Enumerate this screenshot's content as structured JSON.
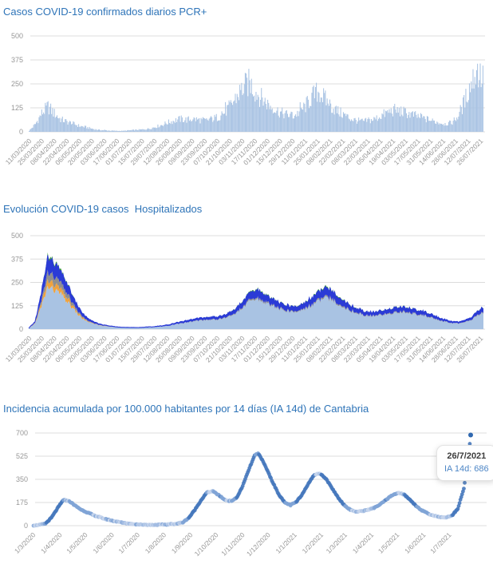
{
  "accent_color": "#2e74b8",
  "axis": {
    "label_color": "#979797",
    "grid_color": "#dcdcdc"
  },
  "chart_data": [
    {
      "type": "bar",
      "title": "Casos COVID-19 confirmados diarios PCR+",
      "ylabel": "",
      "xlabel": "",
      "ylim": [
        0,
        500
      ],
      "yticks": [
        0,
        125,
        250,
        375,
        500
      ],
      "grid": true,
      "legend": "none",
      "bar_color": "#a9c3e3",
      "x_tick_labels": [
        "11/03/2020",
        "25/03/2020",
        "08/04/2020",
        "22/04/2020",
        "06/05/2020",
        "20/05/2020",
        "03/06/2020",
        "17/06/2020",
        "01/07/2020",
        "15/07/2020",
        "29/07/2020",
        "12/08/2020",
        "26/08/2020",
        "09/09/2020",
        "23/09/2020",
        "07/10/2020",
        "21/10/2020",
        "03/11/2020",
        "17/11/2020",
        "01/12/2020",
        "15/12/2020",
        "29/12/2020",
        "11/01/2021",
        "25/01/2021",
        "08/02/2021",
        "22/02/2021",
        "08/03/2021",
        "22/03/2021",
        "05/04/2021",
        "19/04/2021",
        "03/05/2021",
        "17/05/2021",
        "31/05/2021",
        "14/06/2021",
        "28/06/2021",
        "12/07/2021",
        "26/07/2021"
      ],
      "sampling_note": "daily bars; values estimated at weekly control points from 11/03/2020 to 26/07/2021",
      "values_weekly": [
        5,
        40,
        95,
        130,
        95,
        65,
        52,
        42,
        30,
        24,
        16,
        10,
        8,
        6,
        5,
        5,
        8,
        10,
        12,
        16,
        25,
        35,
        48,
        58,
        66,
        62,
        66,
        62,
        58,
        66,
        76,
        100,
        135,
        185,
        230,
        255,
        205,
        170,
        140,
        115,
        98,
        88,
        82,
        105,
        140,
        185,
        210,
        165,
        130,
        105,
        88,
        68,
        58,
        54,
        58,
        68,
        86,
        102,
        112,
        105,
        96,
        86,
        76,
        66,
        56,
        48,
        42,
        46,
        78,
        150,
        240,
        320,
        270
      ]
    },
    {
      "type": "area",
      "title": "Evolución COVID-19 casos  Hospitalizados",
      "ylabel": "",
      "xlabel": "",
      "ylim": [
        0,
        500
      ],
      "yticks": [
        0,
        125,
        250,
        375,
        500
      ],
      "grid": true,
      "legend": "none",
      "stacked": true,
      "x_tick_labels": [
        "11/03/2020",
        "25/03/2020",
        "08/04/2020",
        "22/04/2020",
        "06/05/2020",
        "20/05/2020",
        "03/06/2020",
        "17/06/2020",
        "01/07/2020",
        "15/07/2020",
        "29/07/2020",
        "12/08/2020",
        "26/08/2020",
        "09/09/2020",
        "23/09/2020",
        "07/10/2020",
        "21/10/2020",
        "03/11/2020",
        "17/11/2020",
        "01/12/2020",
        "15/12/2020",
        "29/12/2020",
        "11/01/2021",
        "25/01/2021",
        "08/02/2021",
        "22/02/2021",
        "08/03/2021",
        "22/03/2021",
        "05/04/2021",
        "19/04/2021",
        "03/05/2021",
        "17/05/2021",
        "31/05/2021",
        "14/06/2021",
        "28/06/2021",
        "12/07/2021",
        "26/07/2021"
      ],
      "sampling_note": "stacked daily areas; per-layer values estimated at weekly control points",
      "series": [
        {
          "name": "light-blue-layer",
          "color": "#a9c3e3",
          "values_weekly": [
            3,
            30,
            120,
            225,
            210,
            190,
            150,
            110,
            70,
            45,
            30,
            22,
            16,
            12,
            10,
            8,
            7,
            7,
            8,
            9,
            11,
            14,
            18,
            24,
            30,
            35,
            40,
            45,
            48,
            50,
            52,
            58,
            70,
            90,
            115,
            150,
            160,
            150,
            132,
            118,
            105,
            95,
            90,
            98,
            112,
            132,
            152,
            165,
            155,
            135,
            115,
            98,
            85,
            75,
            70,
            70,
            75,
            82,
            88,
            90,
            88,
            82,
            75,
            68,
            58,
            47,
            38,
            32,
            30,
            35,
            48,
            70,
            90
          ]
        },
        {
          "name": "orange-layer",
          "color": "#f0a23c",
          "values_weekly": [
            0,
            2,
            15,
            35,
            30,
            25,
            20,
            12,
            8,
            4,
            2,
            1,
            1,
            0,
            0,
            0,
            0,
            0,
            0,
            0,
            0,
            0,
            0,
            0,
            0,
            0,
            0,
            0,
            0,
            0,
            0,
            0,
            0,
            0,
            0,
            0,
            0,
            0,
            0,
            0,
            0,
            0,
            0,
            0,
            0,
            0,
            0,
            0,
            0,
            0,
            0,
            0,
            0,
            0,
            0,
            0,
            0,
            0,
            0,
            0,
            0,
            0,
            0,
            0,
            0,
            0,
            0,
            0,
            0,
            0,
            0,
            0,
            0
          ]
        },
        {
          "name": "gray-layer",
          "color": "#8f8f8f",
          "values_weekly": [
            0,
            2,
            15,
            45,
            40,
            35,
            25,
            15,
            8,
            4,
            2,
            1,
            1,
            1,
            0,
            0,
            0,
            0,
            0,
            0,
            0,
            0,
            0,
            0,
            1,
            1,
            2,
            2,
            2,
            2,
            2,
            3,
            3,
            4,
            5,
            7,
            7,
            7,
            6,
            5,
            5,
            4,
            4,
            4,
            5,
            6,
            7,
            7,
            7,
            6,
            5,
            4,
            4,
            3,
            3,
            3,
            3,
            4,
            4,
            4,
            4,
            4,
            3,
            3,
            3,
            2,
            2,
            1,
            1,
            2,
            2,
            3,
            4
          ]
        },
        {
          "name": "blue-layer",
          "color": "#2b3bd6",
          "values_weekly": [
            2,
            6,
            40,
            75,
            70,
            60,
            50,
            35,
            22,
            14,
            9,
            6,
            4,
            3,
            3,
            2,
            2,
            2,
            2,
            3,
            3,
            4,
            5,
            6,
            8,
            9,
            10,
            11,
            12,
            12,
            13,
            14,
            17,
            22,
            28,
            36,
            40,
            38,
            33,
            30,
            26,
            24,
            23,
            25,
            28,
            33,
            38,
            41,
            39,
            34,
            29,
            24,
            21,
            19,
            17,
            18,
            19,
            20,
            22,
            23,
            22,
            20,
            19,
            17,
            14,
            12,
            9,
            8,
            7,
            9,
            12,
            18,
            23
          ]
        },
        {
          "name": "green-layer",
          "color": "#3f9c3f",
          "values_weekly": [
            0,
            0,
            5,
            15,
            12,
            10,
            8,
            5,
            3,
            2,
            1,
            1,
            0,
            0,
            0,
            0,
            0,
            0,
            0,
            0,
            0,
            0,
            1,
            1,
            1,
            1,
            1,
            1,
            2,
            2,
            2,
            2,
            3,
            4,
            5,
            6,
            7,
            7,
            6,
            5,
            4,
            4,
            3,
            4,
            5,
            6,
            7,
            8,
            7,
            6,
            5,
            4,
            3,
            3,
            3,
            3,
            3,
            3,
            4,
            4,
            4,
            3,
            3,
            3,
            2,
            2,
            2,
            1,
            1,
            1,
            2,
            3,
            4
          ]
        }
      ]
    },
    {
      "type": "scatter",
      "title": "Incidencia acumulada por 100.000 habitantes por 14 días (IA 14d) de Cantabria",
      "ylabel": "",
      "xlabel": "",
      "ylim": [
        0,
        700
      ],
      "yticks": [
        0,
        175,
        350,
        525,
        700
      ],
      "grid": true,
      "legend": "none",
      "dot_colors": [
        "#c6d5ec",
        "#a3bde2",
        "#7fa4d6",
        "#4678bd"
      ],
      "last_dot_color": "#2f68b0",
      "x_tick_labels": [
        "1/3/2020",
        "1/4/2020",
        "1/5/2020",
        "1/6/2020",
        "1/7/2020",
        "1/8/2020",
        "1/9/2020",
        "1/10/2020",
        "1/11/2020",
        "1/12/2020",
        "1/1/2021",
        "1/2/2021",
        "1/3/2021",
        "1/4/2021",
        "1/5/2021",
        "1/6/2021",
        "1/7/2021"
      ],
      "x_tick_day_offsets": [
        0,
        31,
        61,
        92,
        122,
        153,
        184,
        214,
        245,
        275,
        306,
        337,
        365,
        396,
        426,
        457,
        487
      ],
      "sampling_note": "daily IA-14d dots from 1/3/2020 to 26/7/2021; values estimated at control points",
      "points": {
        "days": [
          0,
          7,
          14,
          21,
          28,
          35,
          42,
          49,
          56,
          70,
          84,
          98,
          112,
          126,
          140,
          154,
          168,
          175,
          182,
          189,
          196,
          203,
          210,
          217,
          224,
          231,
          238,
          245,
          252,
          259,
          263,
          266,
          273,
          280,
          287,
          294,
          301,
          308,
          315,
          322,
          329,
          336,
          343,
          350,
          357,
          364,
          371,
          378,
          385,
          392,
          399,
          406,
          413,
          420,
          427,
          434,
          441,
          448,
          455,
          462,
          469,
          476,
          483,
          490,
          497,
          504,
          508,
          511,
          512
        ],
        "values": [
          2,
          6,
          15,
          60,
          130,
          195,
          185,
          150,
          120,
          80,
          50,
          30,
          15,
          8,
          6,
          8,
          15,
          25,
          60,
          120,
          190,
          250,
          260,
          230,
          195,
          185,
          210,
          300,
          420,
          530,
          545,
          520,
          430,
          330,
          240,
          175,
          155,
          180,
          240,
          320,
          385,
          395,
          350,
          280,
          210,
          155,
          120,
          105,
          110,
          120,
          135,
          160,
          195,
          230,
          248,
          235,
          195,
          150,
          115,
          90,
          75,
          65,
          62,
          75,
          130,
          280,
          450,
          620,
          686
        ]
      },
      "tooltip": {
        "date": "26/7/2021",
        "text": "IA 14d: 686",
        "value": 686
      }
    }
  ]
}
